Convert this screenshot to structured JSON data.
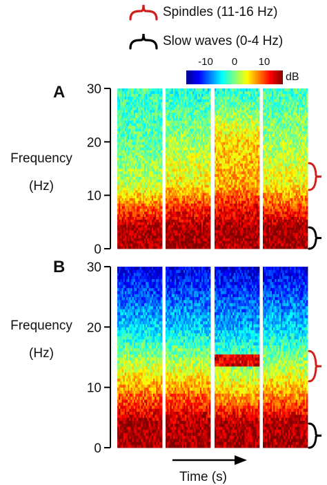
{
  "legend": {
    "spindles": {
      "label": "Spindles (11-16 Hz)",
      "color": "#d0201c",
      "range_hz": [
        11,
        16
      ]
    },
    "slow_waves": {
      "label": "Slow waves (0-4 Hz)",
      "color": "#000000",
      "range_hz": [
        0,
        4
      ]
    }
  },
  "colorbar": {
    "unit": "dB",
    "ticks": [
      "-10",
      "0",
      "10"
    ],
    "tick_values": [
      -10,
      0,
      10
    ],
    "range": [
      -15,
      15
    ],
    "colormap": "jet"
  },
  "x_axis": {
    "label": "Time (s)"
  },
  "chart_data": [
    {
      "type": "heatmap",
      "panel": "A",
      "ylabel_lines": [
        "Frequency",
        "(Hz)"
      ],
      "ylim": [
        0,
        30
      ],
      "yticks": [
        "0",
        "10",
        "20",
        "30"
      ],
      "segments": 4,
      "description_values_db_by_band": [
        {
          "segment": 1,
          "0-4": 14,
          "4-8": 8,
          "8-12": 2,
          "12-20": -1,
          "20-30": -2
        },
        {
          "segment": 2,
          "0-4": 14,
          "4-8": 10,
          "8-12": 4,
          "12-20": 1,
          "20-30": -3
        },
        {
          "segment": 3,
          "0-4": 14,
          "4-8": 11,
          "8-12": 6,
          "12-20": 5,
          "20-30": -3
        },
        {
          "segment": 4,
          "0-4": 14,
          "4-8": 9,
          "8-12": 4,
          "12-20": 1,
          "20-30": -2
        }
      ]
    },
    {
      "type": "heatmap",
      "panel": "B",
      "ylabel_lines": [
        "Frequency",
        "(Hz)"
      ],
      "ylim": [
        0,
        30
      ],
      "yticks": [
        "0",
        "10",
        "20",
        "30"
      ],
      "segments": 4,
      "description_values_db_by_band": [
        {
          "segment": 1,
          "0-4": 14,
          "4-8": 9,
          "8-12": 4,
          "12-20": -5,
          "20-30": -12
        },
        {
          "segment": 2,
          "0-4": 14,
          "4-8": 9,
          "8-12": 4,
          "12-20": -5,
          "20-30": -12
        },
        {
          "segment": 3,
          "0-4": 14,
          "4-8": 7,
          "8-12": 2,
          "12-20": -6,
          "20-30": -12,
          "spindle_band_14_15": 12
        },
        {
          "segment": 4,
          "0-4": 14,
          "4-8": 8,
          "8-12": 3,
          "12-20": -5,
          "20-30": -12
        }
      ]
    }
  ]
}
